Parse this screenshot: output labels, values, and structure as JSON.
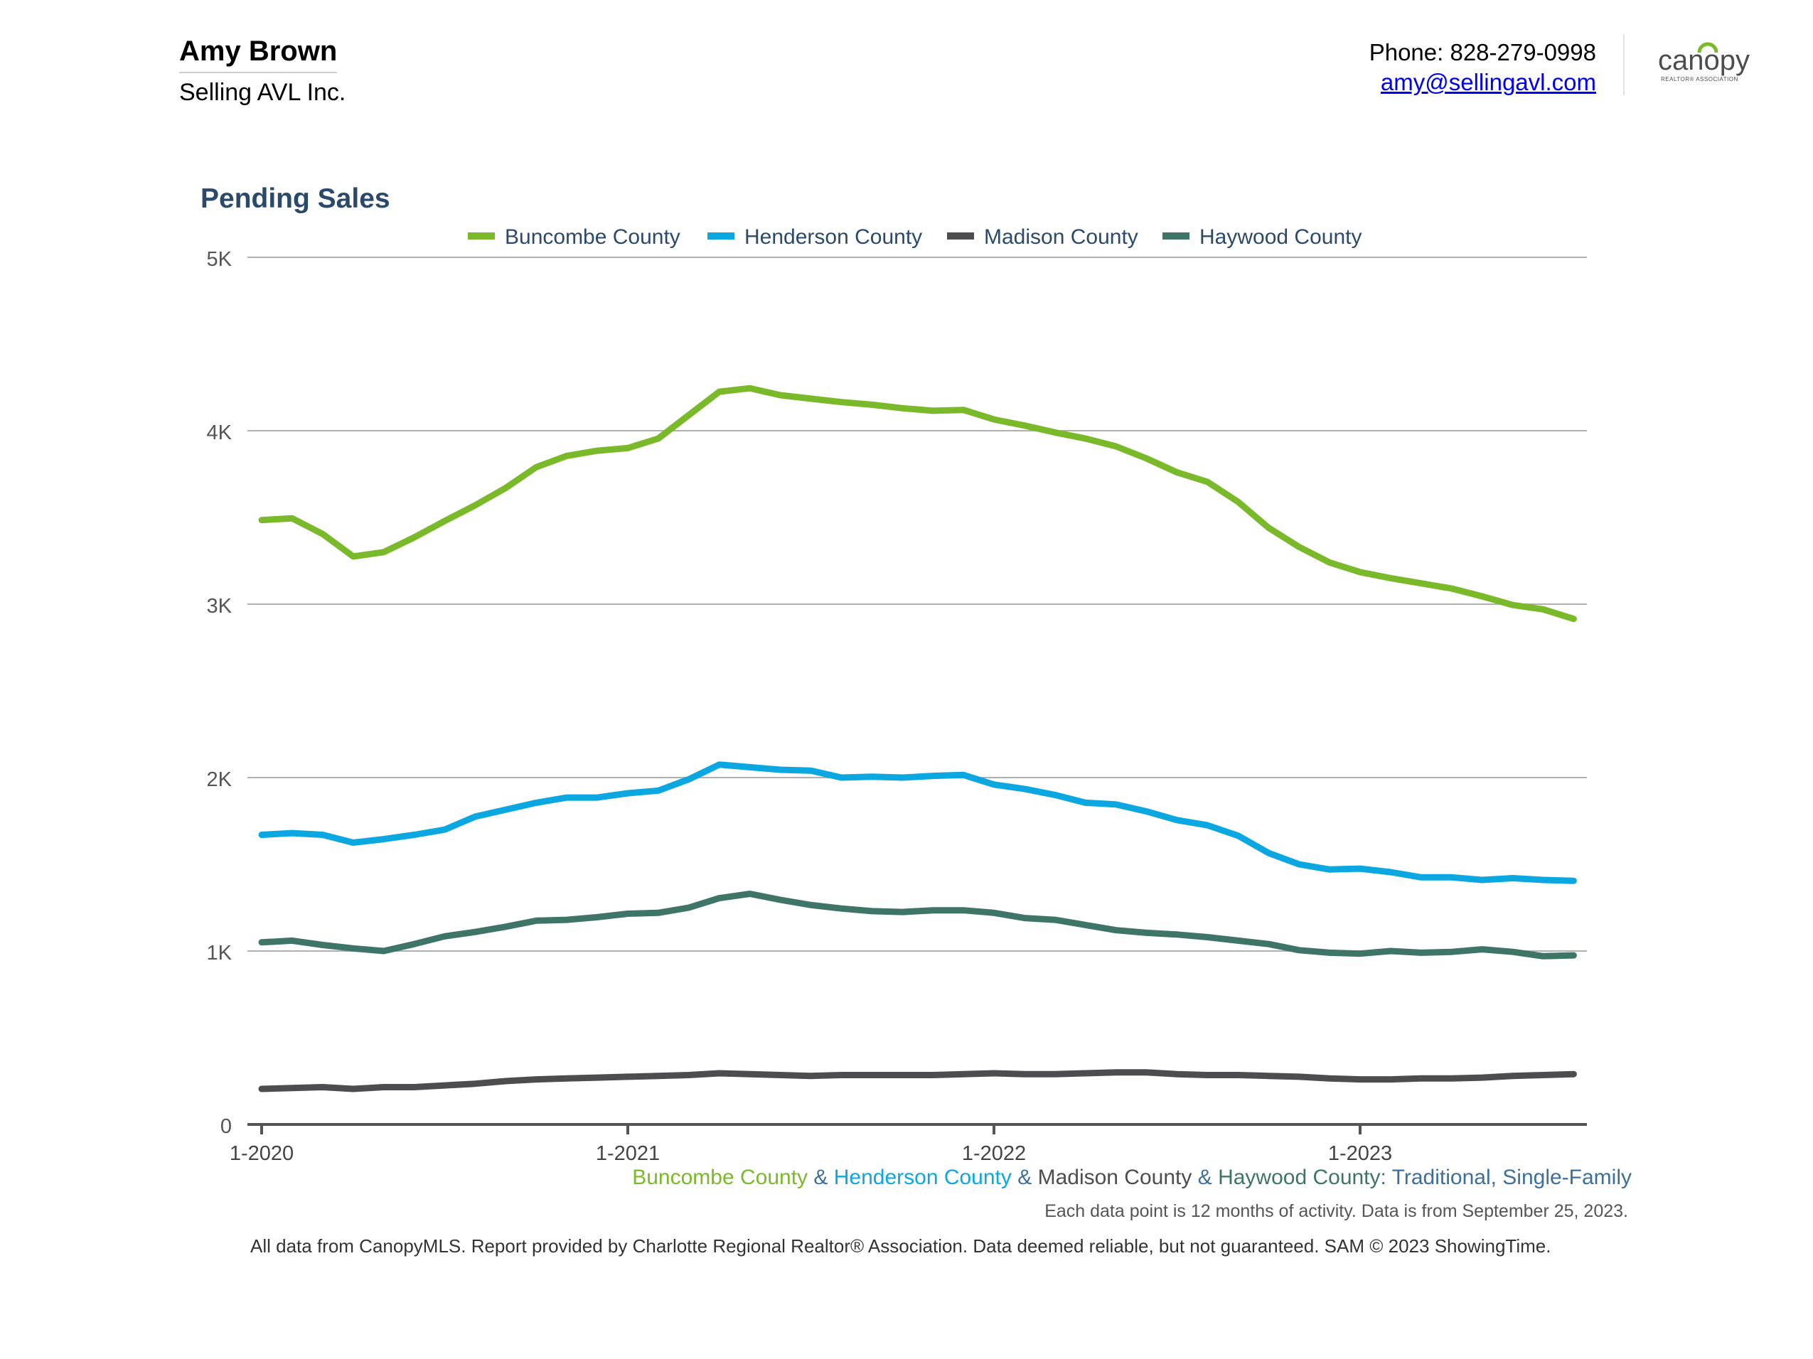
{
  "agent": {
    "name": "Amy Brown",
    "company": "Selling AVL Inc."
  },
  "contact": {
    "phone": "Phone: 828-279-0998",
    "email": "amy@sellingavl.com"
  },
  "logo": {
    "text": "canopy",
    "tagline": "REALTOR® ASSOCIATION"
  },
  "subtitle": {
    "buncombe": "Buncombe County",
    "amp1": " & ",
    "henderson": "Henderson County",
    "amp2": " & ",
    "madison": "Madison County",
    "amp3": " & ",
    "haywood": "Haywood County",
    "suffix": ": Traditional, Single-Family"
  },
  "note": "Each data point is 12 months of activity. Data is from September 25, 2023.",
  "footer": "All data from CanopyMLS. Report provided by Charlotte Regional Realtor® Association. Data deemed reliable, but not guaranteed. SAM © 2023 ShowingTime.",
  "chart_data": {
    "type": "line",
    "title": "Pending Sales",
    "xlabel": "",
    "ylabel": "",
    "ylim": [
      0,
      5000
    ],
    "yticks": [
      0,
      1000,
      2000,
      3000,
      4000,
      5000
    ],
    "ytick_labels": [
      "0",
      "1K",
      "2K",
      "3K",
      "4K",
      "5K"
    ],
    "xtick_labels": [
      "1-2020",
      "1-2021",
      "1-2022",
      "1-2023"
    ],
    "x": [
      "1-2020",
      "2-2020",
      "3-2020",
      "4-2020",
      "5-2020",
      "6-2020",
      "7-2020",
      "8-2020",
      "9-2020",
      "10-2020",
      "11-2020",
      "12-2020",
      "1-2021",
      "2-2021",
      "3-2021",
      "4-2021",
      "5-2021",
      "6-2021",
      "7-2021",
      "8-2021",
      "9-2021",
      "10-2021",
      "11-2021",
      "12-2021",
      "1-2022",
      "2-2022",
      "3-2022",
      "4-2022",
      "5-2022",
      "6-2022",
      "7-2022",
      "8-2022",
      "9-2022",
      "10-2022",
      "11-2022",
      "12-2022",
      "1-2023",
      "2-2023",
      "3-2023",
      "4-2023",
      "5-2023",
      "6-2023",
      "7-2023",
      "8-2023"
    ],
    "grid": true,
    "legend_position": "top",
    "series": [
      {
        "name": "Buncombe County",
        "color": "#7ab929",
        "values": [
          3485,
          3495,
          3405,
          3275,
          3300,
          3385,
          3480,
          3570,
          3670,
          3790,
          3855,
          3885,
          3900,
          3955,
          4090,
          4225,
          4245,
          4205,
          4185,
          4165,
          4150,
          4130,
          4115,
          4120,
          4065,
          4030,
          3990,
          3955,
          3910,
          3840,
          3760,
          3705,
          3590,
          3440,
          3330,
          3240,
          3185,
          3150,
          3120,
          3090,
          3045,
          2995,
          2970,
          2915
        ]
      },
      {
        "name": "Henderson County",
        "color": "#0aa7e1",
        "values": [
          1670,
          1680,
          1670,
          1625,
          1645,
          1670,
          1700,
          1775,
          1815,
          1855,
          1885,
          1885,
          1910,
          1925,
          1990,
          2075,
          2060,
          2045,
          2040,
          2000,
          2005,
          2000,
          2010,
          2015,
          1960,
          1935,
          1900,
          1855,
          1845,
          1805,
          1755,
          1725,
          1665,
          1565,
          1500,
          1470,
          1475,
          1455,
          1425,
          1425,
          1410,
          1420,
          1410,
          1405
        ]
      },
      {
        "name": "Madison County",
        "color": "#4d4d4f",
        "values": [
          205,
          210,
          215,
          205,
          215,
          215,
          225,
          235,
          250,
          260,
          265,
          270,
          275,
          280,
          285,
          295,
          290,
          285,
          280,
          285,
          285,
          285,
          285,
          290,
          295,
          290,
          290,
          295,
          300,
          300,
          290,
          285,
          285,
          280,
          275,
          265,
          260,
          260,
          265,
          265,
          270,
          280,
          285,
          290
        ]
      },
      {
        "name": "Haywood County",
        "color": "#3f7468",
        "values": [
          1050,
          1060,
          1035,
          1015,
          1000,
          1040,
          1085,
          1110,
          1140,
          1175,
          1180,
          1195,
          1215,
          1220,
          1250,
          1305,
          1330,
          1295,
          1265,
          1245,
          1230,
          1225,
          1235,
          1235,
          1220,
          1190,
          1180,
          1150,
          1120,
          1105,
          1095,
          1080,
          1060,
          1040,
          1005,
          990,
          985,
          1000,
          990,
          995,
          1010,
          995,
          970,
          975
        ]
      }
    ]
  }
}
